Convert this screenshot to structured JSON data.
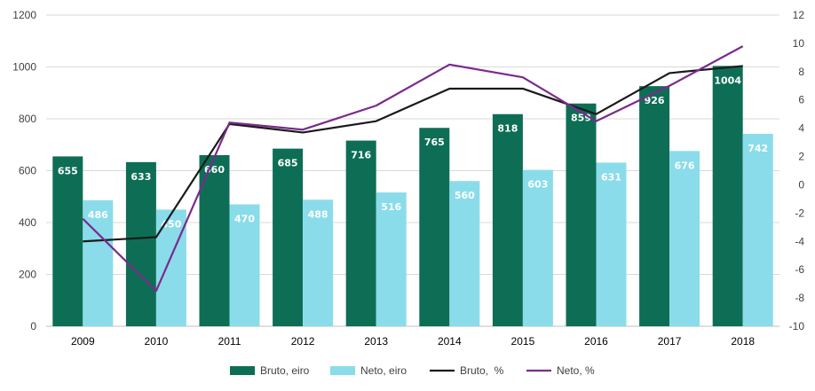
{
  "chart_data": {
    "type": "bar",
    "categories": [
      "2009",
      "2010",
      "2011",
      "2012",
      "2013",
      "2014",
      "2015",
      "2016",
      "2017",
      "2018"
    ],
    "series": [
      {
        "name": "Bruto, eiro",
        "kind": "bar",
        "axis": "left",
        "color": "#0d6e55",
        "values": [
          655,
          633,
          660,
          685,
          716,
          765,
          818,
          859,
          926,
          1004
        ]
      },
      {
        "name": "Neto, eiro",
        "kind": "bar",
        "axis": "left",
        "color": "#8adcea",
        "values": [
          486,
          450,
          470,
          488,
          516,
          560,
          603,
          631,
          676,
          742
        ]
      },
      {
        "name": "Bruto,  %",
        "kind": "line",
        "axis": "right",
        "color": "#1a1a1a",
        "values": [
          -4.0,
          -3.7,
          4.3,
          3.7,
          4.5,
          6.8,
          6.8,
          5.0,
          7.9,
          8.4
        ]
      },
      {
        "name": "Neto, %",
        "kind": "line",
        "axis": "right",
        "color": "#7b2a8c",
        "values": [
          -2.4,
          -7.5,
          4.4,
          3.9,
          5.6,
          8.5,
          7.6,
          4.5,
          7.0,
          9.8
        ]
      }
    ],
    "y_left": {
      "min": 0,
      "max": 1200,
      "ticks": [
        "0",
        "200",
        "400",
        "600",
        "800",
        "1000",
        "1200"
      ]
    },
    "y_right": {
      "min": -10,
      "max": 12,
      "ticks": [
        "-10",
        "-8",
        "-6",
        "-4",
        "-2",
        "0",
        "2",
        "4",
        "6",
        "8",
        "10",
        "12"
      ]
    },
    "grid": true,
    "legend_position": "bottom",
    "data_labels": true
  }
}
